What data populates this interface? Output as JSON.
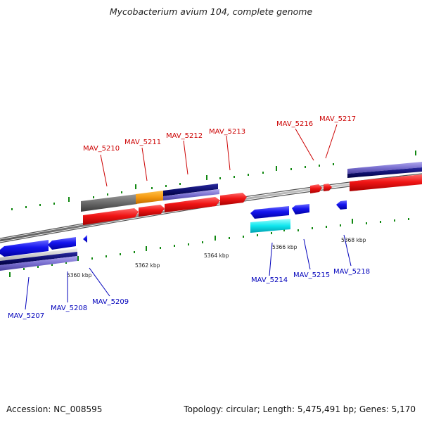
{
  "title": "Mycobacterium avium 104, complete genome",
  "footer": {
    "accession": "Accession: NC_008595",
    "summary": "Topology: circular; Length: 5,475,491 bp; Genes: 5,170"
  },
  "colors": {
    "forward_gene": "#ee1111",
    "reverse_gene": "#1111ee",
    "forward_label": "#cc0000",
    "reverse_label": "#0000bb",
    "backbone": "#8f8f8f",
    "tick": "#118811"
  },
  "scale_labels": [
    "5360 kbp",
    "5362 kbp",
    "5364 kbp",
    "5366 kbp",
    "5368 kbp"
  ],
  "genes": [
    {
      "id": "MAV_5207",
      "strand": "reverse"
    },
    {
      "id": "MAV_5208",
      "strand": "reverse"
    },
    {
      "id": "MAV_5209",
      "strand": "reverse"
    },
    {
      "id": "MAV_5210",
      "strand": "forward"
    },
    {
      "id": "MAV_5211",
      "strand": "forward"
    },
    {
      "id": "MAV_5212",
      "strand": "forward"
    },
    {
      "id": "MAV_5213",
      "strand": "forward"
    },
    {
      "id": "MAV_5214",
      "strand": "reverse"
    },
    {
      "id": "MAV_5215",
      "strand": "reverse"
    },
    {
      "id": "MAV_5216",
      "strand": "forward"
    },
    {
      "id": "MAV_5217",
      "strand": "forward"
    },
    {
      "id": "MAV_5218",
      "strand": "reverse"
    }
  ]
}
